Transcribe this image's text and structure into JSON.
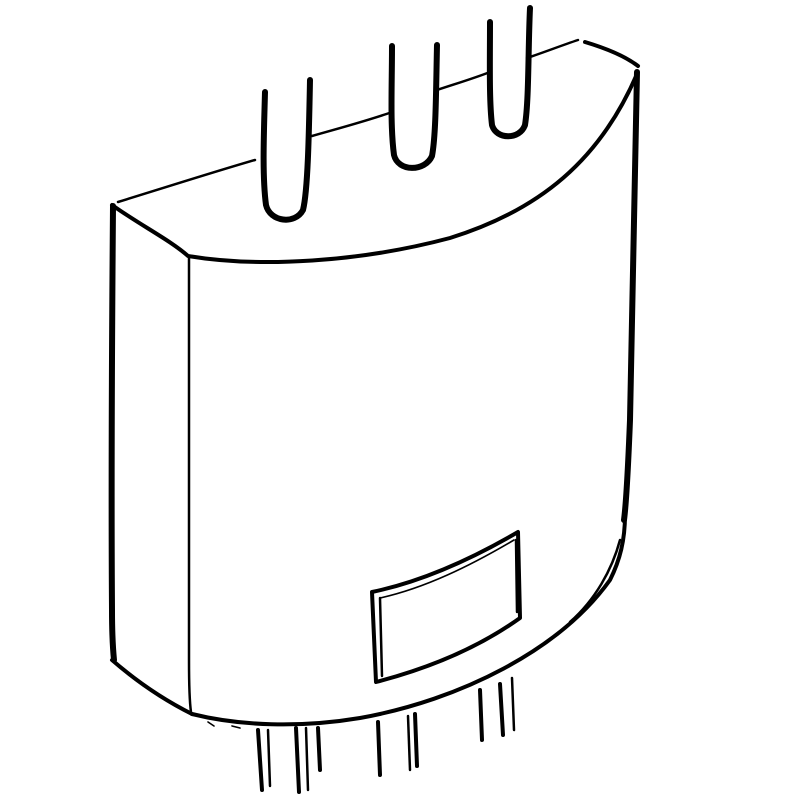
{
  "illustration": {
    "subject": "water-heater-sketch-icon",
    "style": "black ink line drawing on white",
    "colors": {
      "background": "#ffffff",
      "ink": "#000000"
    }
  }
}
